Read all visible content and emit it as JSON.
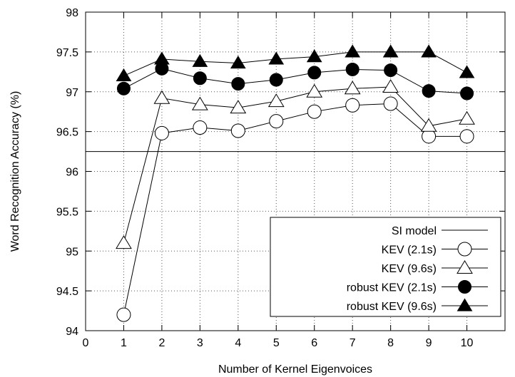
{
  "chart_data": {
    "type": "line",
    "xlabel": "Number of Kernel Eigenvoices",
    "ylabel": "Word Recognition Accuracy (%)",
    "xlim": [
      0,
      11
    ],
    "ylim": [
      94,
      98
    ],
    "x_ticks": [
      0,
      1,
      2,
      3,
      4,
      5,
      6,
      7,
      8,
      9,
      10
    ],
    "y_ticks": [
      94,
      94.5,
      95,
      95.5,
      96,
      96.5,
      97,
      97.5,
      98
    ],
    "x_tick_labels": [
      "0",
      "1",
      "2",
      "3",
      "4",
      "5",
      "6",
      "7",
      "8",
      "9",
      "10"
    ],
    "y_tick_labels": [
      "94",
      "94.5",
      "95",
      "95.5",
      "96",
      "96.5",
      "97",
      "97.5",
      "98"
    ],
    "grid": "dotted vertical at x ticks 1-10 and horizontal at y ticks",
    "legend_position": "lower-right",
    "baseline": {
      "name": "SI model",
      "value": 96.25,
      "color": "#000000"
    },
    "series": [
      {
        "name": "KEV (2.1s)",
        "marker": "circle-open",
        "color": "#000000",
        "x": [
          1,
          2,
          3,
          4,
          5,
          6,
          7,
          8,
          9,
          10
        ],
        "values": [
          94.2,
          96.48,
          96.55,
          96.51,
          96.63,
          96.75,
          96.83,
          96.85,
          96.44,
          96.44
        ]
      },
      {
        "name": "KEV (9.6s)",
        "marker": "triangle-open",
        "color": "#000000",
        "x": [
          1,
          2,
          3,
          4,
          5,
          6,
          7,
          8,
          9,
          10
        ],
        "values": [
          95.1,
          96.92,
          96.84,
          96.8,
          96.88,
          97.0,
          97.04,
          97.06,
          96.57,
          96.66
        ]
      },
      {
        "name": "robust KEV (2.1s)",
        "marker": "circle-filled",
        "color": "#000000",
        "x": [
          1,
          2,
          3,
          4,
          5,
          6,
          7,
          8,
          9,
          10
        ],
        "values": [
          97.04,
          97.29,
          97.17,
          97.1,
          97.15,
          97.24,
          97.28,
          97.27,
          97.01,
          96.98
        ]
      },
      {
        "name": "robust KEV (9.6s)",
        "marker": "triangle-filled",
        "color": "#000000",
        "x": [
          1,
          2,
          3,
          4,
          5,
          6,
          7,
          8,
          9,
          10
        ],
        "values": [
          97.2,
          97.41,
          97.38,
          97.36,
          97.41,
          97.44,
          97.5,
          97.5,
          97.5,
          97.24
        ]
      }
    ]
  }
}
